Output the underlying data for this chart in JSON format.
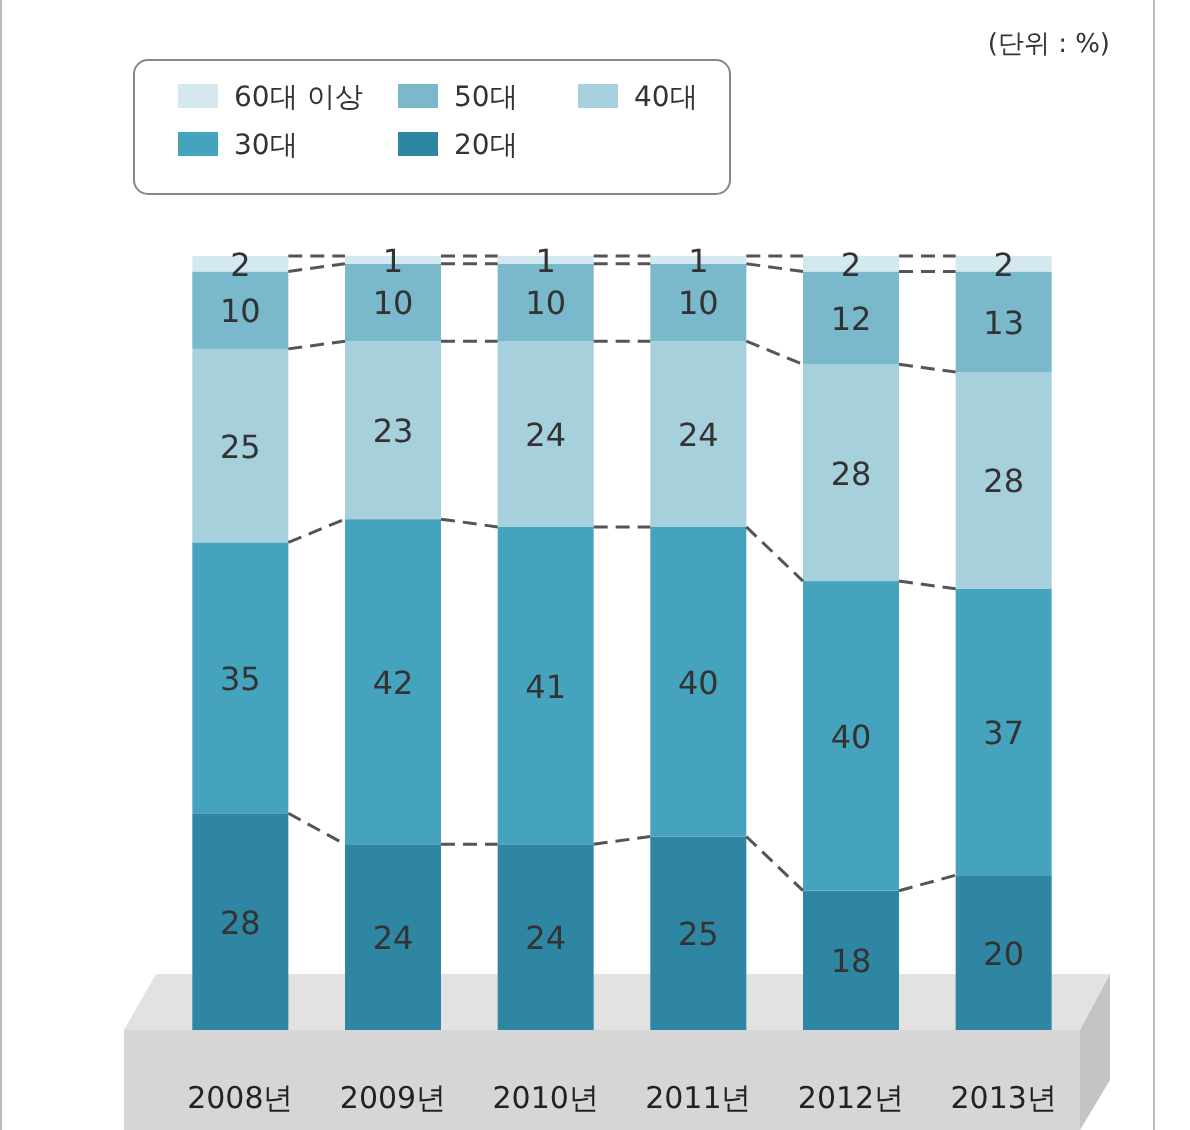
{
  "chart_data": {
    "type": "bar",
    "stacked": true,
    "data_labels": true,
    "legend": "top left",
    "categories": [
      "2008년",
      "2009년",
      "2010년",
      "2011년",
      "2012년",
      "2013년"
    ],
    "series": [
      {
        "name": "20대",
        "color": "#2e86a3",
        "values": [
          28,
          24,
          24,
          25,
          18,
          20
        ]
      },
      {
        "name": "30대",
        "color": "#45a3bd",
        "values": [
          35,
          42,
          41,
          40,
          40,
          37
        ]
      },
      {
        "name": "40대",
        "color": "#a6d0dc",
        "values": [
          25,
          23,
          24,
          24,
          28,
          28
        ]
      },
      {
        "name": "50대",
        "color": "#7ab8cc",
        "values": [
          10,
          10,
          10,
          10,
          12,
          13
        ]
      },
      {
        "name": "60대 이상",
        "color": "#d3e9ef",
        "values": [
          2,
          1,
          1,
          1,
          2,
          2
        ]
      }
    ],
    "annotations": [
      "(단위 : %)"
    ]
  }
}
